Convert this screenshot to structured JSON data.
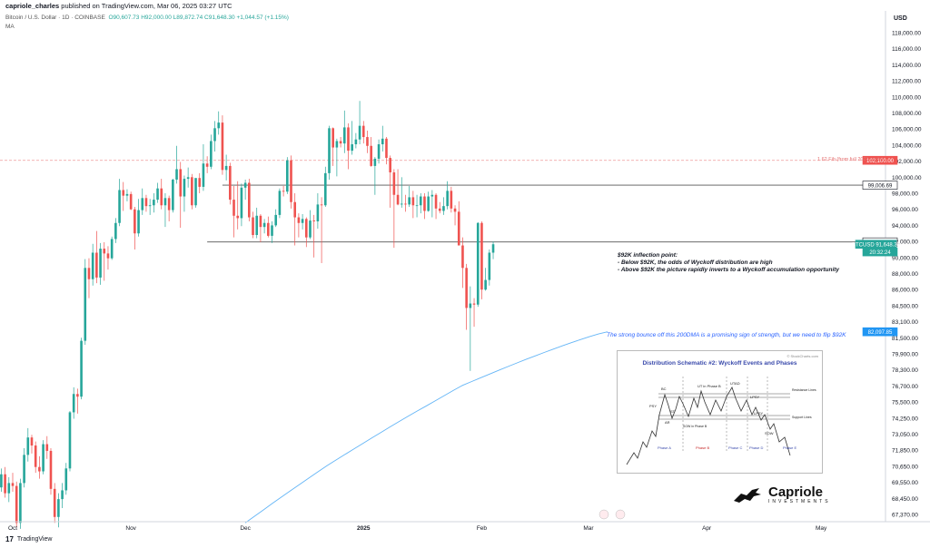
{
  "header": {
    "author": "capriole_charles",
    "published_text": "published on TradingView.com, Mar 06, 2025 03:27 UTC"
  },
  "symbol": {
    "name": "Bitcoin / U.S. Dollar · 1D · COINBASE",
    "open": "O90,607.73",
    "high": "H92,000.00",
    "low": "L89,872.74",
    "close": "C91,648.30",
    "change": "+1,044.57 (+1.15%)",
    "indicator": "MA"
  },
  "footer": {
    "brand": "TradingView"
  },
  "annotations": {
    "inflection_title": "$92K inflection point:",
    "inflection_line1": "- Below $92K, the odds of Wyckoff distribution are high",
    "inflection_line2": "- Above $92K the picture rapidly inverts to a Wyckoff accumulation opportunity",
    "bounce_note": "The strong bounce off this 200DMA is a promising sign of strength, but we need to flip $92K",
    "fib_label": "1.62 Fib (from full 2021 cycle)"
  },
  "schematic": {
    "title": "Distribution Schematic #2: Wyckoff Events and Phases",
    "source": "© StockCharts.com",
    "labels": [
      "BC",
      "UT in Phase B",
      "UTAD",
      "LPSY",
      "Resistance Lines",
      "PSY",
      "ST",
      "AR",
      "SOW in Phase B",
      "LPSY",
      "Support Lines",
      "SOW",
      "Phase A",
      "Phase B",
      "Phase C",
      "Phase D",
      "Phase E"
    ]
  },
  "logo": {
    "name": "Capriole",
    "sub": "INVESTMENTS"
  },
  "colors": {
    "up": "#26a69a",
    "down": "#ef5350",
    "ma": "#64b5f6",
    "fib": "#e57373"
  },
  "chart_data": {
    "type": "candlestick",
    "title": "",
    "price_axis_label": "USD",
    "y_ticks": [
      67370,
      68450,
      69550,
      70650,
      71850,
      73050,
      74250,
      75500,
      76700,
      78300,
      79900,
      81500,
      83100,
      84500,
      86000,
      88000,
      90000,
      92000,
      94000,
      96000,
      98000,
      100000,
      102000,
      104000,
      106000,
      108000,
      110000,
      112000,
      114000,
      116000,
      118000
    ],
    "y_tick_labels": [
      "67,370.00",
      "68,450.00",
      "69,550.00",
      "70,650.00",
      "71,850.00",
      "73,050.00",
      "74,250.00",
      "75,500.00",
      "76,700.00",
      "78,300.00",
      "79,900.00",
      "81,500.00",
      "83,100.00",
      "84,500.00",
      "86,000.00",
      "88,000.00",
      "90,000.00",
      "92,000.00",
      "94,000.00",
      "96,000.00",
      "98,000.00",
      "100,000.00",
      "102,000.00",
      "104,000.00",
      "106,000.00",
      "108,000.00",
      "110,000.00",
      "112,000.00",
      "114,000.00",
      "116,000.00",
      "118,000.00"
    ],
    "x_labels": [
      "Oct",
      "Nov",
      "Dec",
      "2025",
      "Feb",
      "Mar",
      "Apr",
      "May"
    ],
    "price_labels": [
      {
        "value": 102100,
        "text": "102,100.00",
        "color": "#ef5350"
      },
      {
        "value": 99006.69,
        "text": "99,006.69",
        "color": "#131722"
      },
      {
        "value": 91937.65,
        "text": "91,937.65",
        "color": "#131722"
      },
      {
        "value": 91648.3,
        "text": "BTCUSD  91,648.30",
        "color": "#26a69a"
      },
      {
        "value": 90700,
        "text": "20:32:24",
        "color": "#26a69a"
      },
      {
        "value": 82097.85,
        "text": "82,097.85",
        "color": "#2196f3"
      }
    ],
    "hlines": [
      {
        "value": 102100,
        "style": "dashed",
        "color": "#ef9a9a",
        "from": "Oct",
        "to": "end"
      },
      {
        "value": 99006.69,
        "style": "solid",
        "color": "#555555",
        "from": "Nov 25",
        "to": "end"
      },
      {
        "value": 91937.65,
        "style": "solid",
        "color": "#555555",
        "from": "Nov 21",
        "to": "end"
      }
    ],
    "candles": [
      [
        66000,
        67400,
        65500,
        67100
      ],
      [
        67100,
        68500,
        66800,
        68200
      ],
      [
        68200,
        69000,
        67500,
        67800
      ],
      [
        67800,
        69500,
        67600,
        69200
      ],
      [
        69200,
        70500,
        68900,
        70100
      ],
      [
        70100,
        70600,
        68500,
        68800
      ],
      [
        68800,
        69900,
        68200,
        69500
      ],
      [
        69500,
        70200,
        68900,
        69300
      ],
      [
        69300,
        69600,
        66500,
        66800
      ],
      [
        66800,
        69800,
        66400,
        69500
      ],
      [
        69500,
        72000,
        69200,
        71500
      ],
      [
        71500,
        73500,
        71000,
        72800
      ],
      [
        72800,
        73000,
        71600,
        72200
      ],
      [
        72200,
        72500,
        70200,
        70600
      ],
      [
        70600,
        71400,
        69800,
        70300
      ],
      [
        70300,
        72600,
        70100,
        72300
      ],
      [
        72300,
        72900,
        71200,
        71800
      ],
      [
        71800,
        72000,
        68700,
        69100
      ],
      [
        69100,
        69500,
        66800,
        67200
      ],
      [
        67200,
        68800,
        66500,
        68400
      ],
      [
        68400,
        69500,
        67800,
        69000
      ],
      [
        69000,
        70900,
        68700,
        70500
      ],
      [
        70500,
        74800,
        70300,
        74700
      ],
      [
        74700,
        76600,
        74200,
        76100
      ],
      [
        76100,
        76500,
        74600,
        75900
      ],
      [
        75900,
        81500,
        75700,
        81200
      ],
      [
        81200,
        89800,
        80800,
        88700
      ],
      [
        88700,
        89900,
        85200,
        87300
      ],
      [
        87300,
        91700,
        86500,
        90600
      ],
      [
        90600,
        93300,
        86800,
        87500
      ],
      [
        87500,
        91800,
        86600,
        91100
      ],
      [
        91100,
        91900,
        87100,
        90500
      ],
      [
        90500,
        91400,
        88500,
        89900
      ],
      [
        89900,
        92600,
        89700,
        92300
      ],
      [
        92300,
        94900,
        91800,
        94300
      ],
      [
        94300,
        99800,
        93900,
        98400
      ],
      [
        98400,
        99400,
        95800,
        97700
      ],
      [
        97700,
        98500,
        97000,
        97900
      ],
      [
        97900,
        98200,
        95900,
        96000
      ],
      [
        96000,
        96300,
        91000,
        93000
      ],
      [
        93000,
        97300,
        92600,
        95900
      ],
      [
        95900,
        98600,
        95300,
        97400
      ],
      [
        97400,
        97800,
        95700,
        96400
      ],
      [
        96400,
        97300,
        95300,
        96500
      ],
      [
        96500,
        98000,
        95600,
        97200
      ],
      [
        97200,
        99300,
        96800,
        98600
      ],
      [
        98600,
        99800,
        96000,
        96500
      ],
      [
        96500,
        98000,
        93800,
        97400
      ],
      [
        97400,
        97700,
        94500,
        95900
      ],
      [
        95900,
        99800,
        95600,
        99700
      ],
      [
        99700,
        103900,
        99200,
        101000
      ],
      [
        101000,
        101900,
        93700,
        97600
      ],
      [
        97600,
        100200,
        95700,
        99800
      ],
      [
        99800,
        101200,
        98700,
        100000
      ],
      [
        100000,
        100400,
        96000,
        96500
      ],
      [
        96500,
        99800,
        96200,
        99900
      ],
      [
        99900,
        100500,
        98000,
        98800
      ],
      [
        98800,
        104100,
        98300,
        101700
      ],
      [
        101700,
        102600,
        100500,
        101300
      ],
      [
        101300,
        105300,
        101000,
        104500
      ],
      [
        104500,
        107000,
        103200,
        106100
      ],
      [
        106100,
        108200,
        105300,
        106800
      ],
      [
        106800,
        107700,
        100300,
        100900
      ],
      [
        100900,
        102800,
        99600,
        101400
      ],
      [
        101400,
        101800,
        96600,
        97200
      ],
      [
        97200,
        98900,
        92500,
        95200
      ],
      [
        95200,
        99500,
        93500,
        94900
      ],
      [
        94900,
        99200,
        93900,
        98700
      ],
      [
        98700,
        99700,
        97200,
        99300
      ],
      [
        99300,
        99800,
        94500,
        95000
      ],
      [
        95000,
        95700,
        92400,
        92800
      ],
      [
        92800,
        96200,
        92400,
        95200
      ],
      [
        95200,
        95400,
        91900,
        93800
      ],
      [
        93800,
        94800,
        93000,
        94300
      ],
      [
        94300,
        95100,
        92500,
        92700
      ],
      [
        92700,
        94500,
        91800,
        94000
      ],
      [
        94000,
        96000,
        93800,
        95300
      ],
      [
        95300,
        98600,
        94900,
        98300
      ],
      [
        98300,
        98900,
        97600,
        98200
      ],
      [
        98200,
        102500,
        97900,
        102100
      ],
      [
        102100,
        102700,
        96100,
        96900
      ],
      [
        96900,
        98000,
        91500,
        95000
      ],
      [
        95000,
        95500,
        92500,
        94300
      ],
      [
        94300,
        95400,
        93500,
        94800
      ],
      [
        94800,
        95000,
        91300,
        92500
      ],
      [
        92500,
        95900,
        92300,
        94600
      ],
      [
        94600,
        95300,
        90000,
        94500
      ],
      [
        94500,
        98000,
        93600,
        96600
      ],
      [
        96600,
        97500,
        89300,
        96500
      ],
      [
        96500,
        101300,
        96300,
        100500
      ],
      [
        100500,
        106400,
        99700,
        106100
      ],
      [
        106100,
        106200,
        101400,
        103700
      ],
      [
        103700,
        104800,
        100100,
        104500
      ],
      [
        104500,
        105000,
        103700,
        104200
      ],
      [
        104200,
        108300,
        103000,
        106200
      ],
      [
        106200,
        106700,
        101000,
        103300
      ],
      [
        103300,
        107000,
        102800,
        104100
      ],
      [
        104100,
        105500,
        103600,
        104700
      ],
      [
        104700,
        109500,
        104100,
        106400
      ],
      [
        106400,
        107000,
        104200,
        105000
      ],
      [
        105000,
        105800,
        103000,
        103900
      ],
      [
        103900,
        105000,
        101300,
        101400
      ],
      [
        101400,
        102500,
        97800,
        102300
      ],
      [
        102300,
        104700,
        101700,
        104100
      ],
      [
        104100,
        106400,
        103200,
        104800
      ],
      [
        104800,
        105000,
        101600,
        102400
      ],
      [
        102400,
        102700,
        96200,
        100600
      ],
      [
        100600,
        101000,
        91200,
        97800
      ],
      [
        97800,
        101000,
        96500,
        96600
      ],
      [
        96600,
        100000,
        96200,
        96700
      ],
      [
        96700,
        97800,
        95700,
        96600
      ],
      [
        96600,
        98900,
        96300,
        97500
      ],
      [
        97500,
        98300,
        94900,
        96500
      ],
      [
        96500,
        97800,
        95000,
        96500
      ],
      [
        96500,
        98000,
        95500,
        97600
      ],
      [
        97600,
        98000,
        94800,
        95800
      ],
      [
        95800,
        98200,
        95700,
        97600
      ],
      [
        97600,
        98400,
        95000,
        97800
      ],
      [
        97800,
        98000,
        94800,
        96100
      ],
      [
        96100,
        96900,
        95500,
        95800
      ],
      [
        95800,
        97500,
        95300,
        96400
      ],
      [
        96400,
        99500,
        96000,
        98300
      ],
      [
        98300,
        98800,
        95600,
        96100
      ],
      [
        96100,
        96500,
        94000,
        95700
      ],
      [
        95700,
        97000,
        91600,
        91500
      ],
      [
        91500,
        92500,
        86200,
        88700
      ],
      [
        88700,
        89200,
        82300,
        84300
      ],
      [
        84300,
        86400,
        78200,
        84700
      ],
      [
        84700,
        85200,
        82600,
        84600
      ],
      [
        84600,
        94400,
        84400,
        94300
      ],
      [
        94300,
        94500,
        85100,
        86000
      ],
      [
        86000,
        88700,
        85900,
        87200
      ],
      [
        87200,
        91000,
        86500,
        90600
      ],
      [
        90600,
        92000,
        89800,
        91648
      ]
    ],
    "candle_start": "Sep 24 2024",
    "ma": {
      "name": "200DMA",
      "start": "Dec 01 2024",
      "start_value": 66800,
      "end": "Mar 06 2025",
      "end_value": 82098
    }
  }
}
